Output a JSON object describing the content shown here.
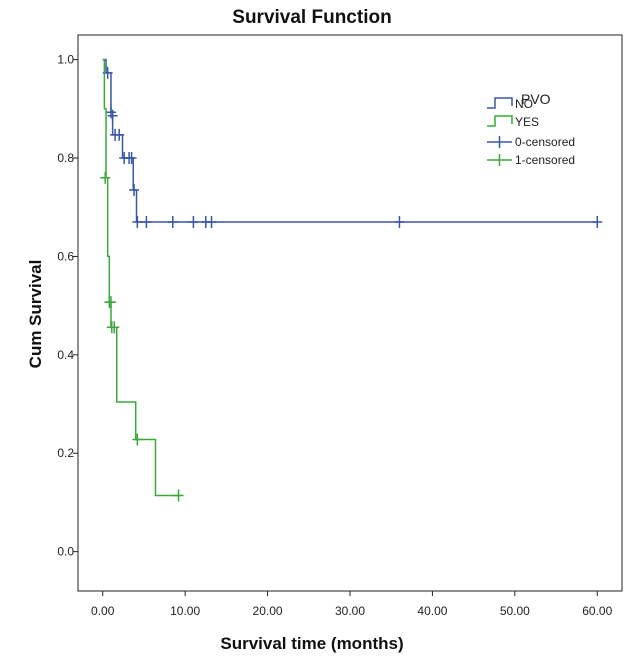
{
  "chart_data": {
    "type": "line",
    "title": "Survival Function",
    "xlabel": "Survival time (months)",
    "ylabel": "Cum Survival",
    "xlim": [
      -3,
      63
    ],
    "ylim": [
      -0.08,
      1.05
    ],
    "x_ticks": [
      "0.00",
      "10.00",
      "20.00",
      "30.00",
      "40.00",
      "50.00",
      "60.00"
    ],
    "y_ticks": [
      "0.0",
      "0.2",
      "0.4",
      "0.6",
      "0.8",
      "1.0"
    ],
    "legend": {
      "title": "PVO",
      "position": "top-right",
      "entries": [
        "NO",
        "YES",
        "0-censored",
        "1-censored"
      ]
    },
    "series": [
      {
        "name": "NO",
        "color": "#3a56a8",
        "steps": [
          [
            0,
            1.0
          ],
          [
            0.4,
            0.973
          ],
          [
            1.0,
            0.893
          ],
          [
            1.2,
            0.847
          ],
          [
            2.4,
            0.8
          ],
          [
            3.7,
            0.735
          ],
          [
            4.1,
            0.67
          ],
          [
            60,
            0.67
          ]
        ],
        "censored": [
          [
            0.6,
            0.973
          ],
          [
            1.0,
            0.893
          ],
          [
            1.2,
            0.886
          ],
          [
            1.5,
            0.847
          ],
          [
            2.0,
            0.847
          ],
          [
            2.6,
            0.8
          ],
          [
            3.2,
            0.8
          ],
          [
            3.5,
            0.8
          ],
          [
            3.8,
            0.735
          ],
          [
            4.2,
            0.67
          ],
          [
            5.3,
            0.67
          ],
          [
            8.5,
            0.67
          ],
          [
            11.0,
            0.67
          ],
          [
            12.5,
            0.67
          ],
          [
            13.2,
            0.67
          ],
          [
            36.0,
            0.67
          ],
          [
            60.0,
            0.67
          ]
        ]
      },
      {
        "name": "YES",
        "color": "#3aa83a",
        "steps": [
          [
            0,
            1.0
          ],
          [
            0.2,
            0.9
          ],
          [
            0.4,
            0.76
          ],
          [
            0.6,
            0.6
          ],
          [
            0.8,
            0.507
          ],
          [
            1.0,
            0.456
          ],
          [
            1.7,
            0.304
          ],
          [
            4.0,
            0.228
          ],
          [
            6.4,
            0.114
          ],
          [
            9.3,
            0.114
          ]
        ],
        "censored": [
          [
            0.3,
            0.76
          ],
          [
            0.8,
            0.507
          ],
          [
            1.0,
            0.507
          ],
          [
            1.1,
            0.456
          ],
          [
            1.4,
            0.456
          ],
          [
            4.2,
            0.228
          ],
          [
            9.2,
            0.114
          ]
        ]
      }
    ]
  }
}
